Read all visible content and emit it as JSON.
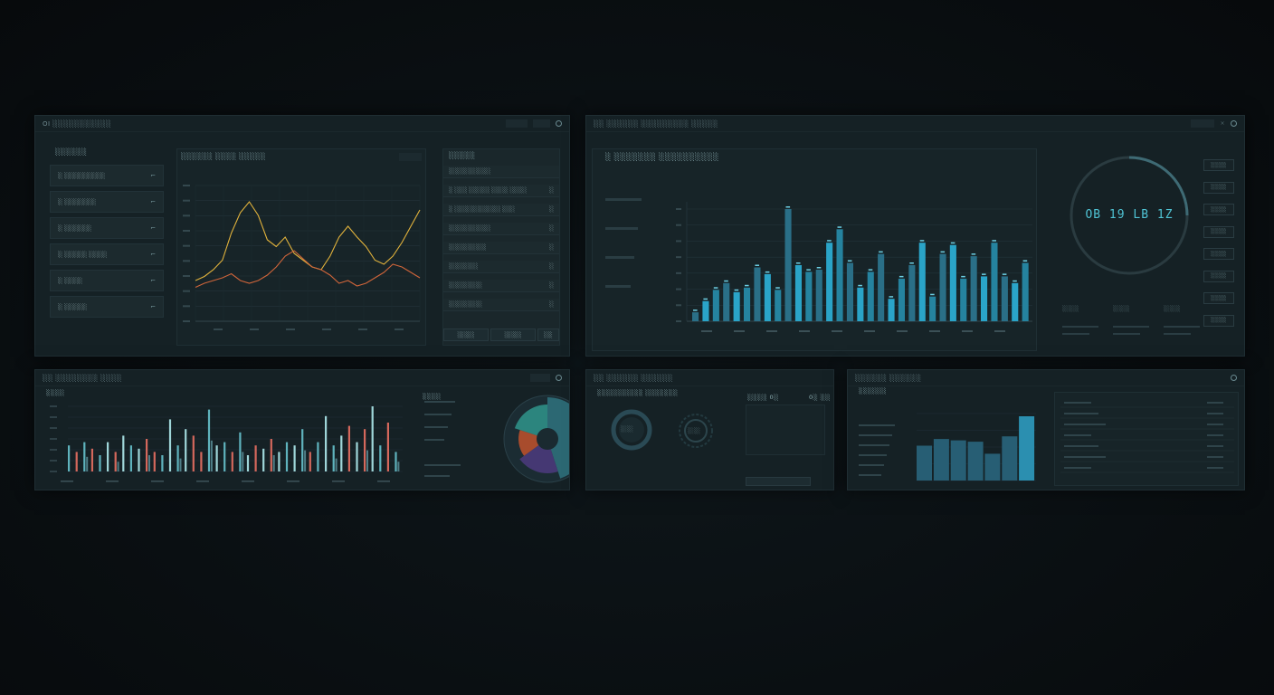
{
  "colors": {
    "bg": "#0a0f12",
    "panel": "#152125",
    "accent_teal": "#2aa4c8",
    "line_yellow": "#e2b33c",
    "line_orange": "#d0653a",
    "bar_red": "#d4685c",
    "bar_teal": "#5fb3bd"
  },
  "panel1": {
    "title": "OI ░░░░░░░░░░░",
    "list_title": "░░░░░░",
    "list_items": [
      {
        "label": "░ ░░░░░░░░░",
        "mark": "⌐"
      },
      {
        "label": "░ ░░░░░░░",
        "mark": "⌐"
      },
      {
        "label": "░ ░░░░░░",
        "mark": "⌐"
      },
      {
        "label": "░ ░░░░░ ░░░░",
        "mark": "⌐"
      },
      {
        "label": "░ ░░░░",
        "mark": "⌐"
      },
      {
        "label": "░ ░░░░░",
        "mark": "⌐"
      }
    ],
    "chart_title": "░░░░░░ ░░░░ ░░░░░",
    "right_title": "░░░░░",
    "right_items": [
      {
        "label": "░░░░░░░░░░",
        "mark": ""
      },
      {
        "label": "░ ░░░ ░░░░░ ░░░░ ░░░░",
        "mark": "░"
      },
      {
        "label": "░ ░░░░░░░░░░░ ░░░",
        "mark": "░"
      },
      {
        "label": "░░░░░░░░░░",
        "mark": "░"
      },
      {
        "label": "░░░░░░░░░",
        "mark": "░"
      },
      {
        "label": "░░░░░░░",
        "mark": "░"
      },
      {
        "label": "░░░░░░░░",
        "mark": "░"
      },
      {
        "label": "░░░░░░░░",
        "mark": "░"
      }
    ],
    "footer_btns": [
      "░░░░",
      "░░░░",
      "░░"
    ]
  },
  "panel2": {
    "title": "░░ ░░░░░░ ░░░░░░░░░ ░░░░░",
    "chart_title": "░ ░░░░░░░  ░░░░░░░░░░",
    "gauge_value": "OB 19 LB 1Z",
    "side_buttons": [
      "░░░░",
      "░░░░",
      "░░░░",
      "░░░░",
      "░░░░",
      "░░░░",
      "░░░░",
      "░░░░"
    ],
    "footer_labels": [
      "░░░░",
      "░░░░",
      "░░░░"
    ]
  },
  "panel3": {
    "title": "░░ ░░░░░░░░ ░░░░",
    "chart_label": "░░░░",
    "donut_label": "░░░░"
  },
  "panel4": {
    "title": "░░ ░░░░░░ ░░░░░░",
    "sub_title": "░░░░░░░░░░ ░░░░░░░",
    "stat1": "░░░░ 0░",
    "stat2": "0░ ░░",
    "ring_label": "░░░",
    "ring2_label": "░░░"
  },
  "panel5": {
    "title": "░░░░░░ ░░░░░░",
    "sub_title": "░░░░░░"
  },
  "chart_data": [
    {
      "type": "line",
      "series": [
        {
          "values": [
            30,
            33,
            38,
            45,
            65,
            80,
            88,
            78,
            60,
            55,
            62,
            50,
            45,
            40,
            38,
            48,
            62,
            70,
            62,
            55,
            45,
            42,
            48,
            58,
            70,
            82
          ]
        },
        {
          "values": [
            25,
            28,
            30,
            32,
            35,
            30,
            28,
            30,
            34,
            40,
            48,
            52,
            46,
            40,
            38,
            34,
            28,
            30,
            26,
            28,
            32,
            36,
            42,
            40,
            36,
            32
          ]
        }
      ],
      "ylim": [
        0,
        100
      ]
    },
    {
      "type": "bar",
      "series": [
        {
          "values": [
            8,
            18,
            28,
            34,
            26,
            30,
            48,
            42,
            28,
            100,
            50,
            44,
            46,
            70,
            82,
            52,
            30,
            44,
            60,
            20,
            38,
            50,
            70,
            22,
            60,
            68,
            38,
            58,
            40,
            70,
            40,
            34,
            52
          ]
        }
      ],
      "ylim": [
        0,
        100
      ]
    },
    {
      "type": "bar",
      "series": [
        {
          "values": [
            40,
            30,
            45,
            35,
            25,
            45,
            30,
            55,
            40,
            35,
            50,
            30,
            25,
            80,
            40,
            65,
            55,
            30,
            95,
            40,
            45,
            30,
            60,
            25,
            40,
            35,
            50,
            30,
            45,
            40,
            65,
            30,
            45,
            85,
            40,
            55,
            70,
            45,
            65,
            100,
            40,
            75,
            30
          ]
        }
      ],
      "ylim": [
        0,
        100
      ]
    },
    {
      "type": "pie",
      "values": [
        45,
        20,
        15,
        20
      ]
    },
    {
      "type": "bar",
      "series": [
        {
          "values": [
            52,
            62,
            60,
            58,
            40,
            66,
            96
          ]
        }
      ],
      "ylim": [
        0,
        100
      ]
    }
  ]
}
